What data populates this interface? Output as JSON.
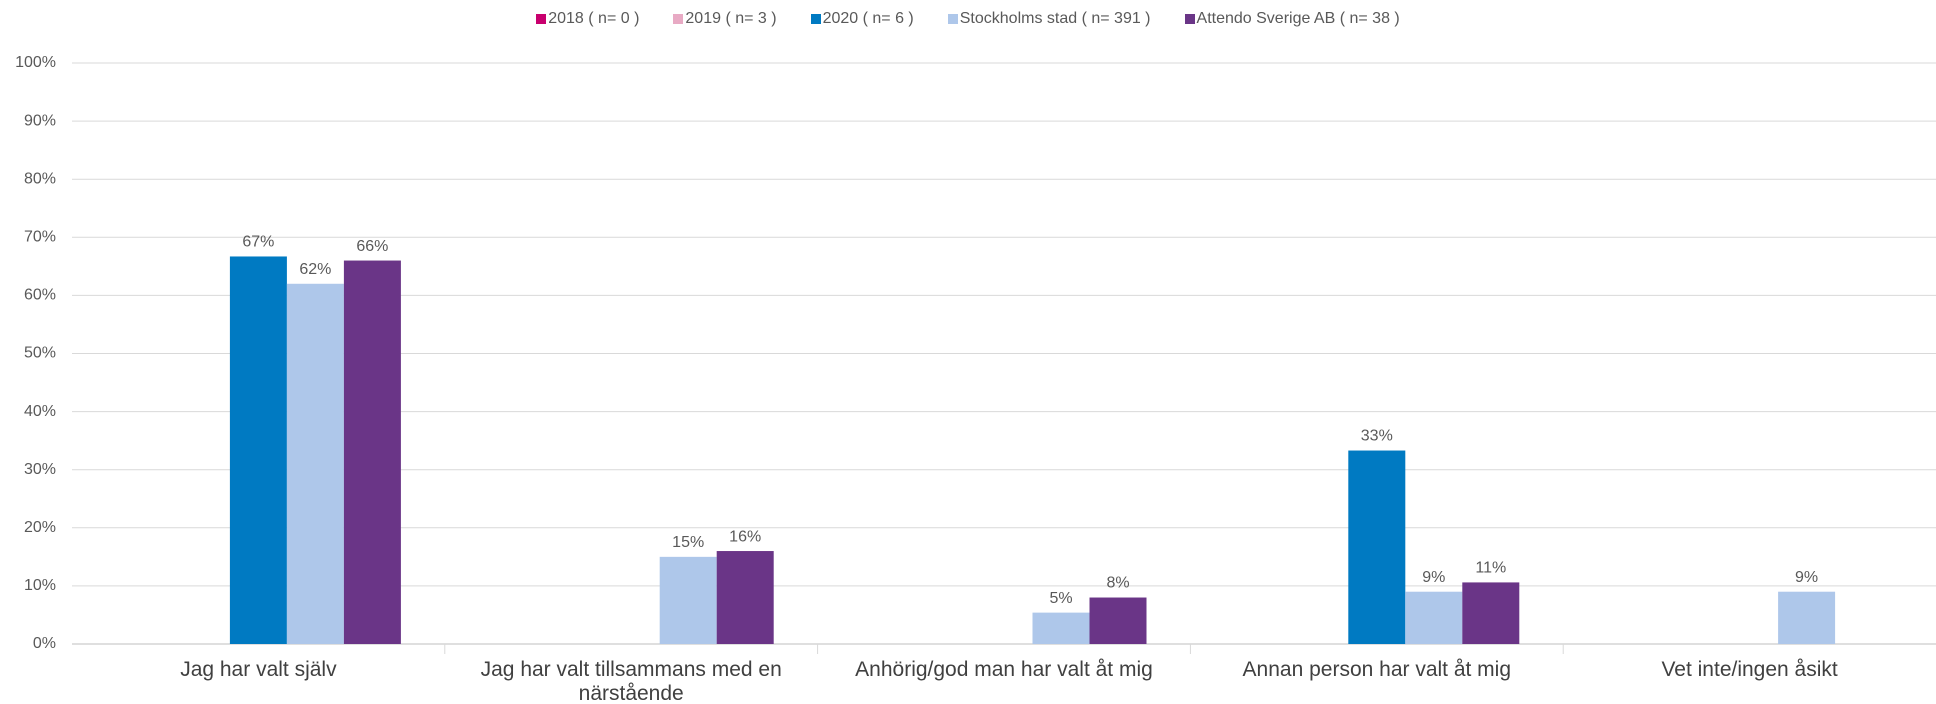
{
  "chart_data": {
    "type": "bar",
    "categories": [
      "Jag har valt själv",
      "Jag har valt tillsammans med en närstående",
      "Anhörig/god man har valt åt mig",
      "Annan person har valt åt mig",
      "Vet inte/ingen åsikt"
    ],
    "series": [
      {
        "name": "2018  ( n= 0 )",
        "color": "#c8006e",
        "values": [
          null,
          null,
          null,
          null,
          null
        ]
      },
      {
        "name": "2019  ( n= 3 )",
        "color": "#e8aac4",
        "values": [
          null,
          null,
          null,
          null,
          null
        ]
      },
      {
        "name": "2020  ( n= 6 )",
        "color": "#007ac2",
        "values": [
          66.7,
          null,
          null,
          33.3,
          null
        ],
        "value_labels": [
          "67%",
          null,
          null,
          "33%",
          null
        ]
      },
      {
        "name": "Stockholms stad  ( n= 391 )",
        "color": "#aec7ea",
        "values": [
          62,
          15,
          5.4,
          9,
          9
        ],
        "value_labels": [
          "62%",
          "15%",
          "5%",
          "9%",
          "9%"
        ]
      },
      {
        "name": "Attendo Sverige AB  ( n= 38 )",
        "color": "#6a3587",
        "values": [
          66,
          16,
          8,
          10.6,
          null
        ],
        "value_labels": [
          "66%",
          "16%",
          "8%",
          "11%",
          null
        ]
      }
    ],
    "ylim": [
      0,
      100
    ],
    "yticks": [
      {
        "value": 0,
        "label": "0%"
      },
      {
        "value": 10,
        "label": "10%"
      },
      {
        "value": 20,
        "label": "20%"
      },
      {
        "value": 30,
        "label": "30%"
      },
      {
        "value": 40,
        "label": "40%"
      },
      {
        "value": 50,
        "label": "50%"
      },
      {
        "value": 60,
        "label": "60%"
      },
      {
        "value": 70,
        "label": "70%"
      },
      {
        "value": 80,
        "label": "80%"
      },
      {
        "value": 90,
        "label": "90%"
      },
      {
        "value": 100,
        "label": "100%"
      }
    ],
    "grid": true
  }
}
